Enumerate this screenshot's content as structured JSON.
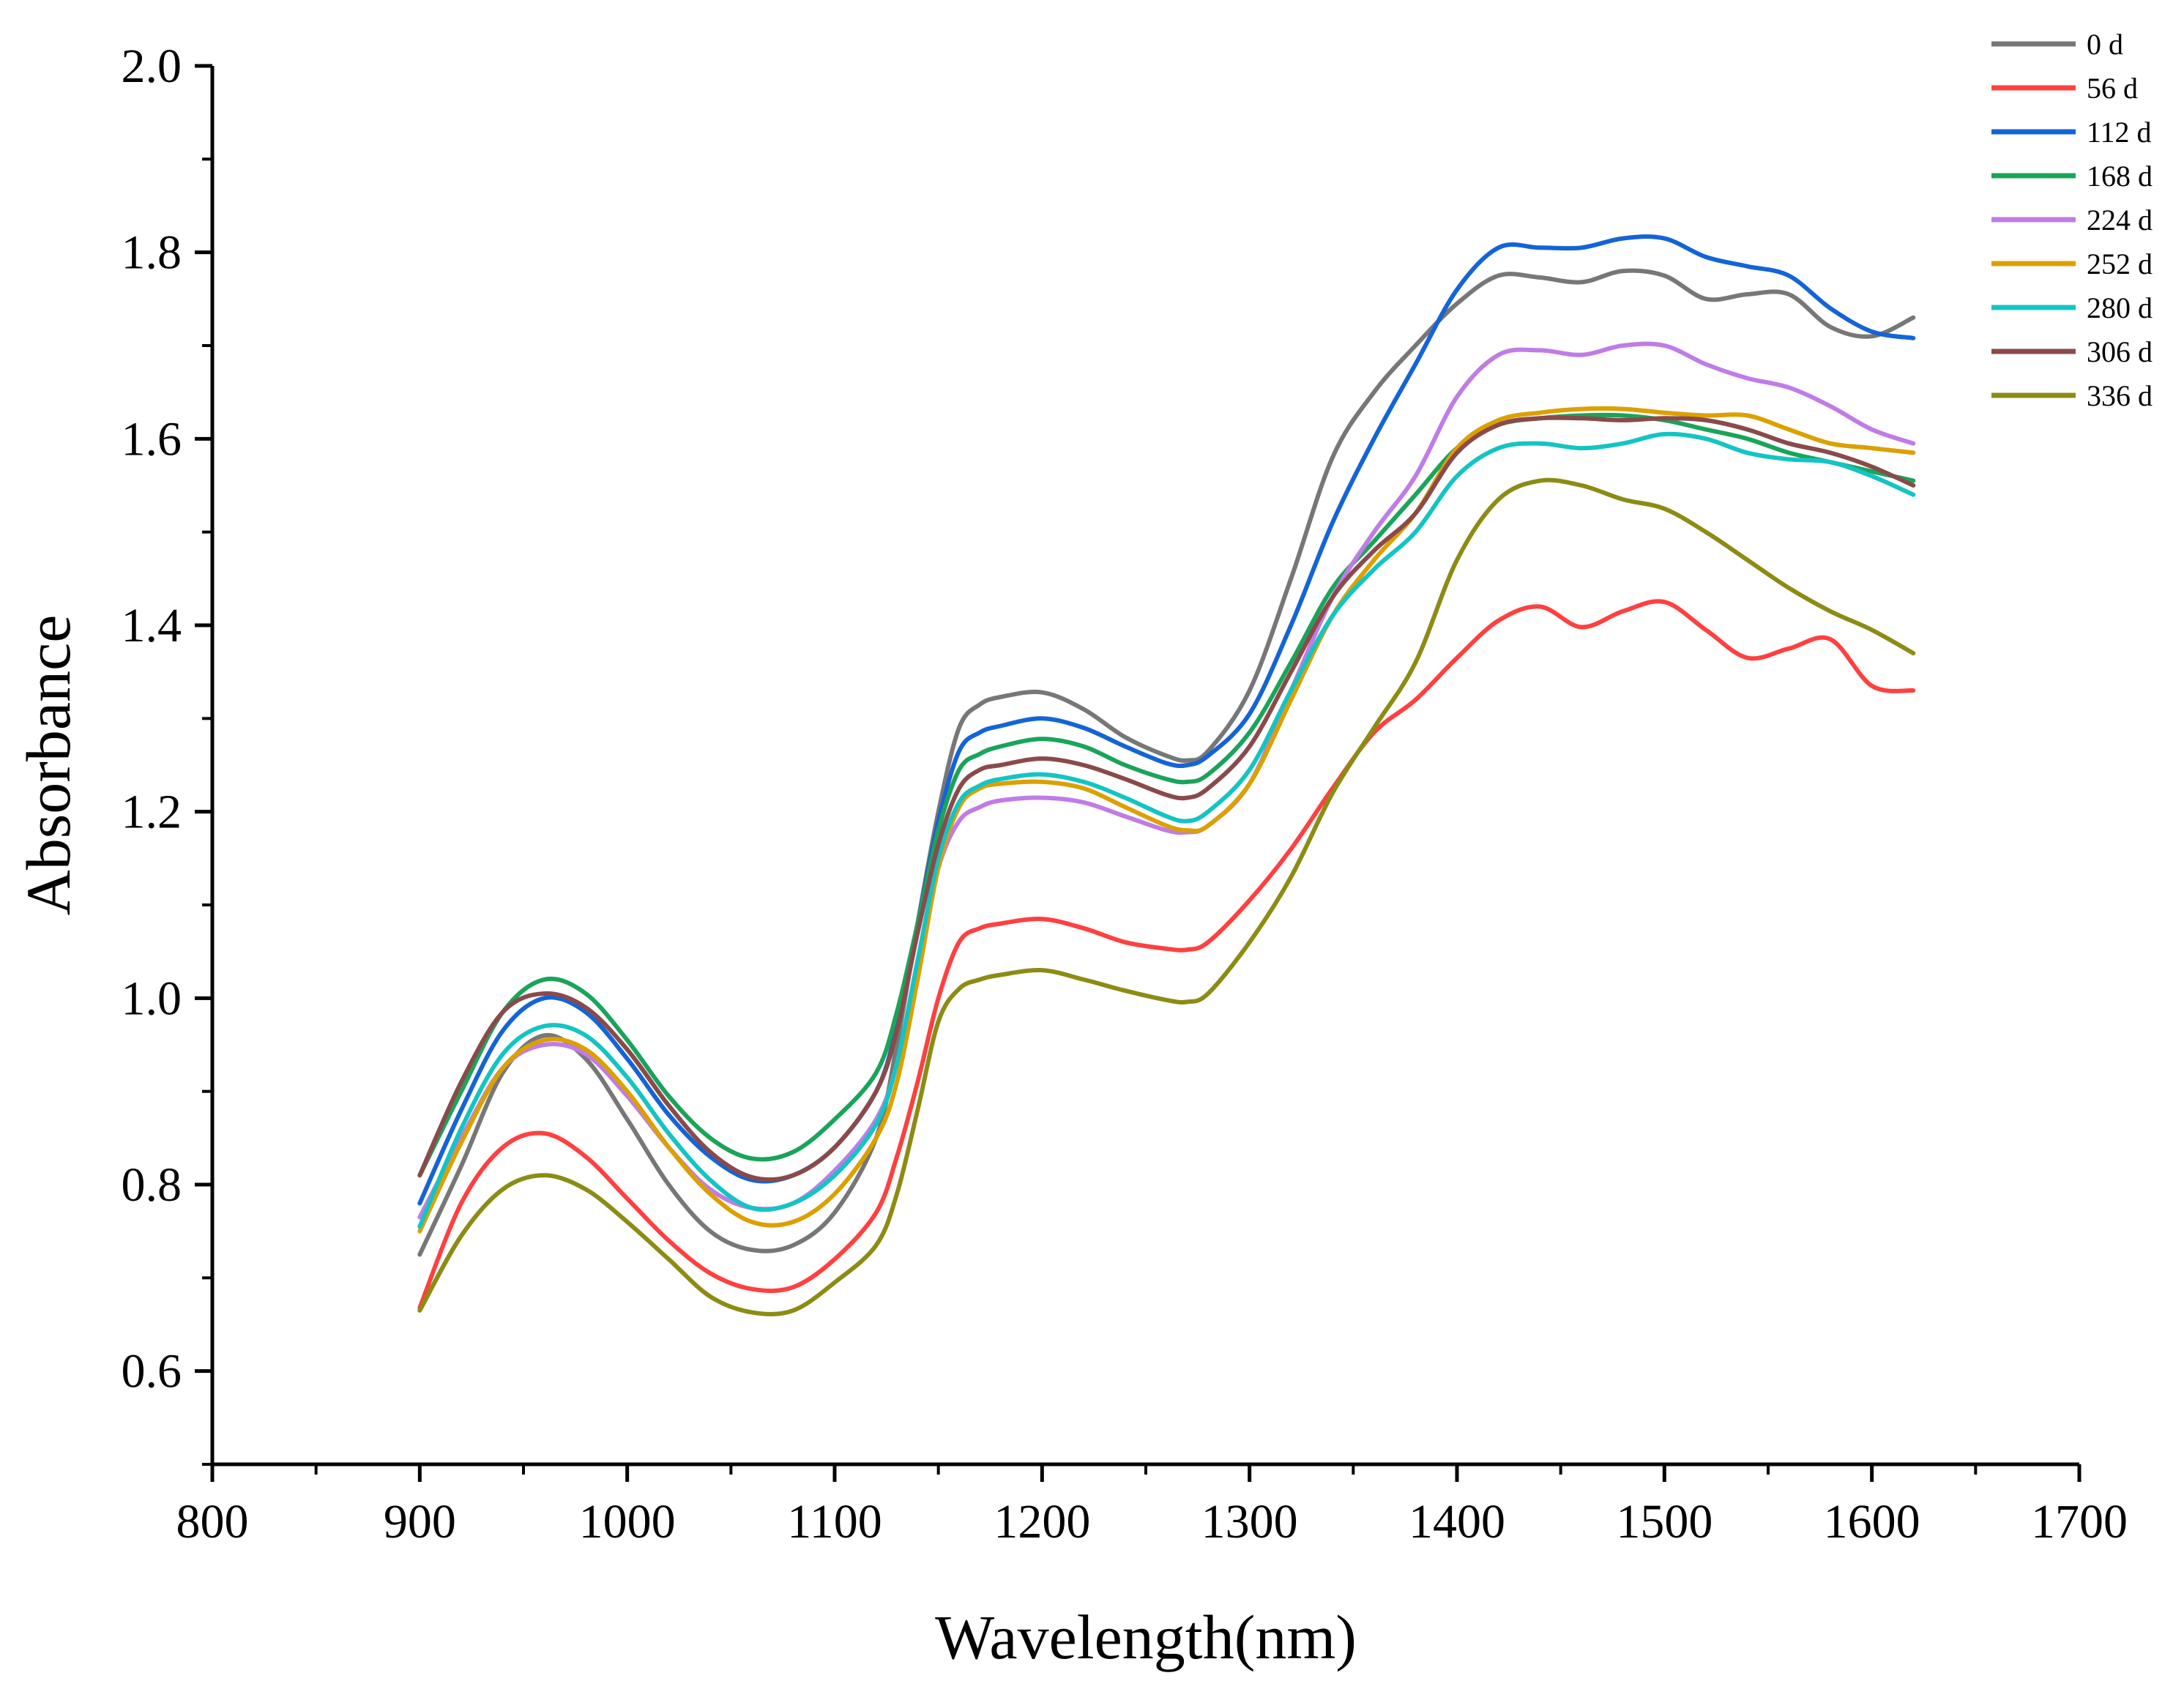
{
  "chart_data": {
    "type": "line",
    "title": "",
    "xlabel": "Wavelength(nm)",
    "ylabel": "Absorbance",
    "xlim": [
      800,
      1700
    ],
    "ylim": [
      0.5,
      2.0
    ],
    "x_ticks": [
      800,
      900,
      1000,
      1100,
      1200,
      1300,
      1400,
      1500,
      1600,
      1700
    ],
    "x_tick_labels": [
      "800",
      "900",
      "1000",
      "1100",
      "1200",
      "1300",
      "1400",
      "1500",
      "1600",
      "1700"
    ],
    "y_ticks": [
      0.6,
      0.8,
      1.0,
      1.2,
      1.4,
      1.6,
      1.8,
      2.0
    ],
    "y_tick_labels": [
      "0.6",
      "0.8",
      "1.0",
      "1.2",
      "1.4",
      "1.6",
      "1.8",
      "2.0"
    ],
    "grid": false,
    "legend_position": "top-right",
    "x": [
      900,
      920,
      940,
      960,
      980,
      1000,
      1020,
      1040,
      1060,
      1080,
      1100,
      1120,
      1130,
      1140,
      1150,
      1160,
      1170,
      1180,
      1200,
      1220,
      1240,
      1260,
      1270,
      1280,
      1300,
      1320,
      1340,
      1360,
      1380,
      1400,
      1420,
      1440,
      1460,
      1480,
      1500,
      1520,
      1540,
      1560,
      1580,
      1600,
      1620
    ],
    "series": [
      {
        "name": "0 d",
        "color": "#777777",
        "values": [
          0.725,
          0.82,
          0.92,
          0.96,
          0.935,
          0.87,
          0.8,
          0.75,
          0.73,
          0.735,
          0.77,
          0.85,
          0.95,
          1.08,
          1.2,
          1.29,
          1.315,
          1.323,
          1.328,
          1.31,
          1.28,
          1.26,
          1.255,
          1.265,
          1.33,
          1.45,
          1.58,
          1.65,
          1.7,
          1.745,
          1.775,
          1.773,
          1.768,
          1.78,
          1.775,
          1.75,
          1.755,
          1.755,
          1.72,
          1.71,
          1.73
        ]
      },
      {
        "name": "56 d",
        "color": "#ff4040",
        "values": [
          0.668,
          0.78,
          0.84,
          0.855,
          0.83,
          0.785,
          0.74,
          0.705,
          0.688,
          0.69,
          0.72,
          0.77,
          0.83,
          0.91,
          1.0,
          1.06,
          1.075,
          1.08,
          1.085,
          1.075,
          1.06,
          1.053,
          1.052,
          1.06,
          1.105,
          1.16,
          1.225,
          1.285,
          1.32,
          1.365,
          1.405,
          1.42,
          1.398,
          1.415,
          1.425,
          1.395,
          1.365,
          1.375,
          1.385,
          1.335,
          1.33
        ]
      },
      {
        "name": "112 d",
        "color": "#1464d8",
        "values": [
          0.78,
          0.88,
          0.965,
          1.0,
          0.985,
          0.935,
          0.875,
          0.83,
          0.805,
          0.81,
          0.84,
          0.9,
          0.97,
          1.08,
          1.19,
          1.265,
          1.285,
          1.292,
          1.3,
          1.29,
          1.27,
          1.252,
          1.25,
          1.26,
          1.305,
          1.4,
          1.51,
          1.6,
          1.68,
          1.76,
          1.805,
          1.805,
          1.805,
          1.815,
          1.815,
          1.795,
          1.785,
          1.775,
          1.74,
          1.715,
          1.708
        ]
      },
      {
        "name": "168 d",
        "color": "#1aa45a",
        "values": [
          0.81,
          0.9,
          0.985,
          1.02,
          1.005,
          0.955,
          0.895,
          0.85,
          0.828,
          0.835,
          0.87,
          0.92,
          0.985,
          1.08,
          1.18,
          1.245,
          1.262,
          1.27,
          1.278,
          1.27,
          1.25,
          1.235,
          1.232,
          1.24,
          1.285,
          1.36,
          1.44,
          1.49,
          1.54,
          1.59,
          1.615,
          1.622,
          1.625,
          1.625,
          1.62,
          1.61,
          1.6,
          1.585,
          1.575,
          1.565,
          1.555
        ]
      },
      {
        "name": "224 d",
        "color": "#c07ce6",
        "values": [
          0.765,
          0.85,
          0.925,
          0.95,
          0.94,
          0.895,
          0.84,
          0.795,
          0.775,
          0.78,
          0.815,
          0.87,
          0.93,
          1.04,
          1.14,
          1.19,
          1.205,
          1.212,
          1.215,
          1.21,
          1.195,
          1.18,
          1.178,
          1.185,
          1.23,
          1.33,
          1.43,
          1.5,
          1.56,
          1.645,
          1.69,
          1.695,
          1.69,
          1.7,
          1.7,
          1.68,
          1.665,
          1.655,
          1.635,
          1.61,
          1.595
        ]
      },
      {
        "name": "252 d",
        "color": "#dca000",
        "values": [
          0.75,
          0.845,
          0.925,
          0.955,
          0.945,
          0.9,
          0.84,
          0.79,
          0.76,
          0.76,
          0.79,
          0.85,
          0.91,
          1.02,
          1.14,
          1.205,
          1.225,
          1.23,
          1.232,
          1.225,
          1.205,
          1.185,
          1.18,
          1.185,
          1.23,
          1.32,
          1.41,
          1.47,
          1.52,
          1.59,
          1.62,
          1.628,
          1.632,
          1.632,
          1.628,
          1.625,
          1.625,
          1.61,
          1.595,
          1.59,
          1.585
        ]
      },
      {
        "name": "280 d",
        "color": "#14c4c4",
        "values": [
          0.755,
          0.86,
          0.94,
          0.97,
          0.96,
          0.915,
          0.855,
          0.805,
          0.775,
          0.78,
          0.81,
          0.865,
          0.93,
          1.04,
          1.15,
          1.21,
          1.228,
          1.235,
          1.24,
          1.232,
          1.215,
          1.195,
          1.19,
          1.2,
          1.245,
          1.33,
          1.41,
          1.46,
          1.5,
          1.56,
          1.59,
          1.595,
          1.59,
          1.595,
          1.605,
          1.6,
          1.585,
          1.578,
          1.575,
          1.56,
          1.54
        ]
      },
      {
        "name": "306 d",
        "color": "#8b4a4a",
        "values": [
          0.81,
          0.91,
          0.985,
          1.005,
          0.99,
          0.945,
          0.885,
          0.835,
          0.808,
          0.81,
          0.84,
          0.9,
          0.965,
          1.07,
          1.165,
          1.225,
          1.245,
          1.25,
          1.257,
          1.25,
          1.235,
          1.218,
          1.215,
          1.225,
          1.27,
          1.35,
          1.43,
          1.48,
          1.52,
          1.585,
          1.615,
          1.622,
          1.622,
          1.62,
          1.622,
          1.62,
          1.61,
          1.595,
          1.585,
          1.57,
          1.55
        ]
      },
      {
        "name": "336 d",
        "color": "#8c8c14",
        "values": [
          0.665,
          0.745,
          0.795,
          0.81,
          0.795,
          0.76,
          0.72,
          0.68,
          0.663,
          0.665,
          0.695,
          0.735,
          0.79,
          0.88,
          0.975,
          1.01,
          1.02,
          1.025,
          1.03,
          1.02,
          1.008,
          0.998,
          0.996,
          1.005,
          1.06,
          1.13,
          1.22,
          1.29,
          1.36,
          1.47,
          1.535,
          1.555,
          1.55,
          1.535,
          1.525,
          1.5,
          1.47,
          1.44,
          1.415,
          1.395,
          1.37
        ]
      }
    ]
  }
}
